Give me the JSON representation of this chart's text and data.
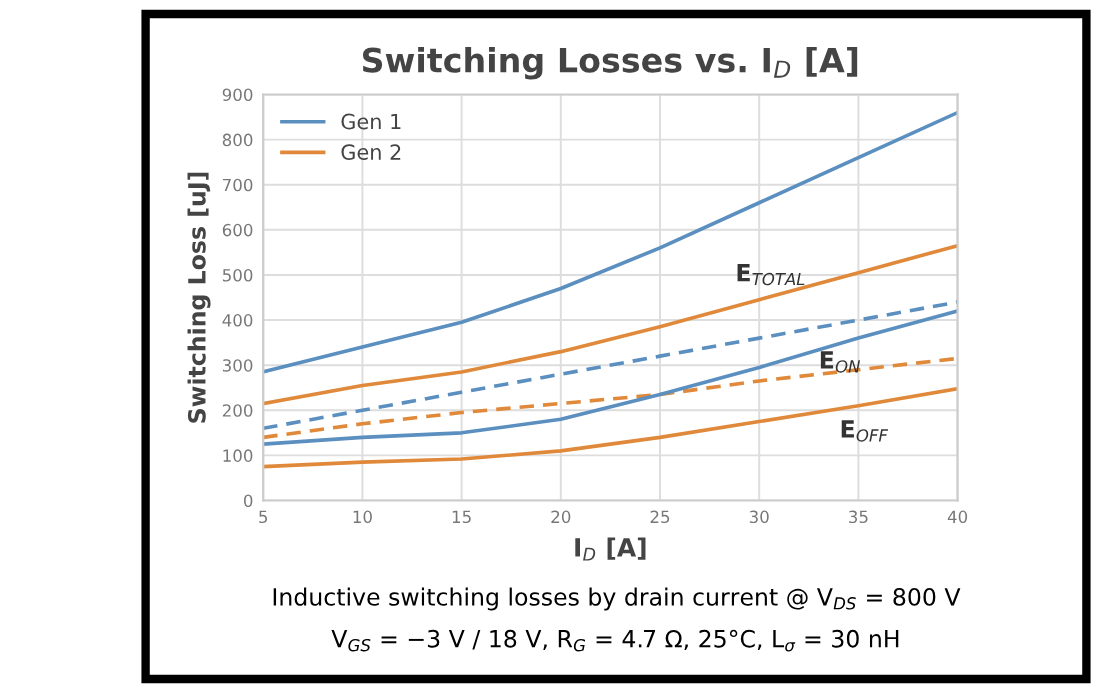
{
  "chart_data": {
    "type": "line",
    "title": "Switching Losses vs. I$_{D}$ [A]",
    "xlabel": "I$_{D}$ [A]",
    "ylabel": "Switching Loss [uJ]",
    "x": [
      5,
      10,
      15,
      20,
      25,
      30,
      35,
      40
    ],
    "series": [
      {
        "name": "Gen 1",
        "color": "#5b8fc0",
        "line_style": "solid",
        "values": [
          285,
          340,
          395,
          470,
          560,
          660,
          760,
          860
        ]
      },
      {
        "name": "Gen 2",
        "color": "#e0893a",
        "line_style": "solid",
        "values": [
          215,
          255,
          285,
          330,
          385,
          445,
          505,
          565
        ]
      },
      {
        "color": "#5b8fc0",
        "line_style": "dashed",
        "values": [
          160,
          200,
          240,
          280,
          320,
          360,
          400,
          440
        ]
      },
      {
        "color": "#e0893a",
        "line_style": "dashed",
        "values": [
          140,
          170,
          195,
          215,
          235,
          265,
          290,
          315
        ]
      },
      {
        "color": "#5b8fc0",
        "line_style": "solid",
        "values": [
          125,
          140,
          150,
          180,
          235,
          295,
          360,
          420
        ]
      },
      {
        "color": "#e0893a",
        "line_style": "solid",
        "values": [
          75,
          85,
          92,
          110,
          140,
          175,
          210,
          248
        ]
      }
    ],
    "xlim": [
      5,
      40
    ],
    "xticks": [
      5,
      10,
      15,
      20,
      25,
      30,
      35,
      40
    ],
    "ylim": [
      0,
      900
    ],
    "yticks": [
      0,
      100,
      200,
      300,
      400,
      500,
      600,
      700,
      800,
      900
    ],
    "grid": true,
    "legend": "top left",
    "marker": "none",
    "annotations": [
      "E$_{TOTAL}$",
      "E$_{ON}$",
      "E$_{OFF}$",
      "Inductive switching losses by drain current @ V$_{DS}$ = 800 V",
      "V$_{GS}$ = −3 V / 18 V, R$_{G}$ = 4.7 Ω, 25°C, L$_{σ}$ = 30 nH"
    ]
  }
}
